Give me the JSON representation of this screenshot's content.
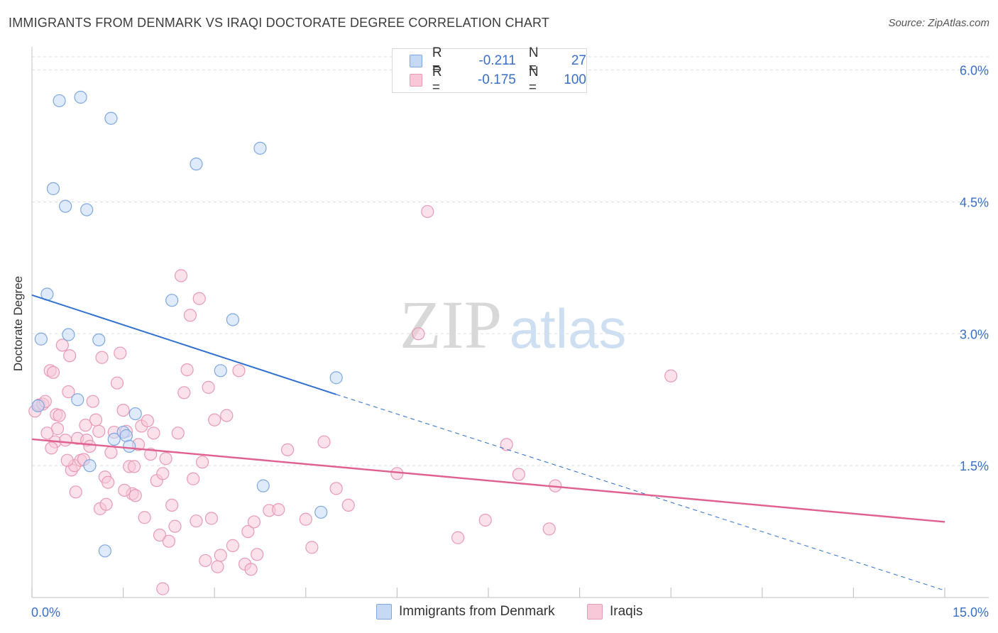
{
  "header": {
    "title": "IMMIGRANTS FROM DENMARK VS IRAQI DOCTORATE DEGREE CORRELATION CHART",
    "source": "Source: ZipAtlas.com"
  },
  "watermark": {
    "zip": "ZIP",
    "atlas": "atlas"
  },
  "legend": {
    "r_label": "R =",
    "n_label": "N =",
    "rows": [
      {
        "r": "-0.211",
        "n": "27"
      },
      {
        "r": "-0.175",
        "n": "100"
      }
    ]
  },
  "colors": {
    "blue_fill": "#c5d9f5",
    "blue_stroke": "#7fa8e0",
    "blue_line": "#3070d0",
    "pink_fill": "#f8c8d8",
    "pink_stroke": "#e79ab4",
    "pink_line": "#e0608f",
    "tick_label": "#3a6fc8",
    "grid": "#dddddd"
  },
  "chart_data": {
    "type": "scatter",
    "title": "IMMIGRANTS FROM DENMARK VS IRAQI DOCTORATE DEGREE CORRELATION CHART",
    "xlabel": "",
    "ylabel": "Doctorate Degree",
    "xlim": [
      0,
      15
    ],
    "ylim": [
      0,
      6.15
    ],
    "x_tick_labels": [
      "0.0%",
      "15.0%"
    ],
    "y_ticks": [
      1.5,
      3.0,
      4.5,
      6.0
    ],
    "y_tick_labels": [
      "1.5%",
      "3.0%",
      "4.5%",
      "6.0%"
    ],
    "x_minor_ticks": [
      0,
      1.5,
      3,
      4.5,
      6,
      7.5,
      9,
      10.5,
      12,
      13.5,
      15
    ],
    "legend_position": "bottom",
    "series": [
      {
        "name": "Immigrants from Denmark",
        "color": "blue",
        "r": -0.211,
        "n": 27,
        "trend": {
          "x0": 0,
          "y0": 3.44,
          "x_solid_end": 5.0,
          "y_solid_end": 2.31,
          "x1": 15,
          "y1": 0.08
        },
        "points": [
          [
            0.1,
            2.18
          ],
          [
            0.45,
            5.65
          ],
          [
            0.8,
            5.69
          ],
          [
            1.3,
            5.45
          ],
          [
            0.35,
            4.65
          ],
          [
            0.55,
            4.45
          ],
          [
            0.9,
            4.41
          ],
          [
            3.75,
            5.11
          ],
          [
            2.7,
            4.93
          ],
          [
            0.25,
            3.45
          ],
          [
            2.3,
            3.38
          ],
          [
            3.3,
            3.16
          ],
          [
            0.15,
            2.94
          ],
          [
            0.6,
            2.99
          ],
          [
            1.1,
            2.93
          ],
          [
            3.1,
            2.58
          ],
          [
            5.0,
            2.5
          ],
          [
            0.75,
            2.25
          ],
          [
            1.7,
            2.09
          ],
          [
            1.5,
            1.88
          ],
          [
            1.35,
            1.8
          ],
          [
            1.55,
            1.84
          ],
          [
            1.6,
            1.72
          ],
          [
            0.95,
            1.5
          ],
          [
            3.8,
            1.27
          ],
          [
            4.75,
            0.97
          ],
          [
            1.2,
            0.53
          ]
        ]
      },
      {
        "name": "Iraqis",
        "color": "pink",
        "r": -0.175,
        "n": 100,
        "trend": {
          "x0": 0,
          "y0": 1.8,
          "x1": 15,
          "y1": 0.86
        },
        "points": [
          [
            0.05,
            2.12
          ],
          [
            0.12,
            2.19
          ],
          [
            0.18,
            2.2
          ],
          [
            0.22,
            2.23
          ],
          [
            0.3,
            2.58
          ],
          [
            0.35,
            2.56
          ],
          [
            0.4,
            2.08
          ],
          [
            0.42,
            1.92
          ],
          [
            0.38,
            1.77
          ],
          [
            0.25,
            1.87
          ],
          [
            0.32,
            1.7
          ],
          [
            0.45,
            2.07
          ],
          [
            0.5,
            2.87
          ],
          [
            0.55,
            1.79
          ],
          [
            0.6,
            2.34
          ],
          [
            0.65,
            1.45
          ],
          [
            0.7,
            1.5
          ],
          [
            0.75,
            1.81
          ],
          [
            0.8,
            1.56
          ],
          [
            0.85,
            1.57
          ],
          [
            0.62,
            2.75
          ],
          [
            0.9,
            1.79
          ],
          [
            0.95,
            1.72
          ],
          [
            1.0,
            2.23
          ],
          [
            1.05,
            2.02
          ],
          [
            1.1,
            1.89
          ],
          [
            1.15,
            2.73
          ],
          [
            1.2,
            1.37
          ],
          [
            1.25,
            1.31
          ],
          [
            1.3,
            1.65
          ],
          [
            1.35,
            1.88
          ],
          [
            1.4,
            2.44
          ],
          [
            1.45,
            2.78
          ],
          [
            1.5,
            2.13
          ],
          [
            1.55,
            1.89
          ],
          [
            1.6,
            1.49
          ],
          [
            1.65,
            1.18
          ],
          [
            1.7,
            1.16
          ],
          [
            1.75,
            1.74
          ],
          [
            1.8,
            1.95
          ],
          [
            1.85,
            0.91
          ],
          [
            1.9,
            2.01
          ],
          [
            1.95,
            1.63
          ],
          [
            2.0,
            1.87
          ],
          [
            2.05,
            1.33
          ],
          [
            2.1,
            0.71
          ],
          [
            2.15,
            1.41
          ],
          [
            2.2,
            1.58
          ],
          [
            2.25,
            0.64
          ],
          [
            2.3,
            1.05
          ],
          [
            2.35,
            0.81
          ],
          [
            2.4,
            1.87
          ],
          [
            2.45,
            3.66
          ],
          [
            2.5,
            2.33
          ],
          [
            2.55,
            2.59
          ],
          [
            2.6,
            3.21
          ],
          [
            2.65,
            1.35
          ],
          [
            2.7,
            0.87
          ],
          [
            2.75,
            3.4
          ],
          [
            2.8,
            1.54
          ],
          [
            2.85,
            0.42
          ],
          [
            2.9,
            2.39
          ],
          [
            2.95,
            0.9
          ],
          [
            3.0,
            2.02
          ],
          [
            3.05,
            0.35
          ],
          [
            3.1,
            0.48
          ],
          [
            3.2,
            2.07
          ],
          [
            3.3,
            0.59
          ],
          [
            3.4,
            2.58
          ],
          [
            3.5,
            0.38
          ],
          [
            3.55,
            0.75
          ],
          [
            3.6,
            0.32
          ],
          [
            3.65,
            0.86
          ],
          [
            3.7,
            0.49
          ],
          [
            3.9,
            0.99
          ],
          [
            4.05,
            1.0
          ],
          [
            4.2,
            1.68
          ],
          [
            4.5,
            0.89
          ],
          [
            4.6,
            0.57
          ],
          [
            4.8,
            1.77
          ],
          [
            5.0,
            1.24
          ],
          [
            5.2,
            1.05
          ],
          [
            6.0,
            1.41
          ],
          [
            6.35,
            3.0
          ],
          [
            6.5,
            4.39
          ],
          [
            7.0,
            0.68
          ],
          [
            7.45,
            0.88
          ],
          [
            7.8,
            1.74
          ],
          [
            8.0,
            1.4
          ],
          [
            8.5,
            0.78
          ],
          [
            8.6,
            1.27
          ],
          [
            10.5,
            2.52
          ],
          [
            0.72,
            1.2
          ],
          [
            1.12,
            1.01
          ],
          [
            1.68,
            1.49
          ],
          [
            2.15,
            0.1
          ],
          [
            1.52,
            1.22
          ],
          [
            0.88,
            1.96
          ],
          [
            1.22,
            1.06
          ],
          [
            0.58,
            1.56
          ]
        ]
      }
    ]
  },
  "bottom_legend": {
    "series1": "Immigrants from Denmark",
    "series2": "Iraqis"
  }
}
